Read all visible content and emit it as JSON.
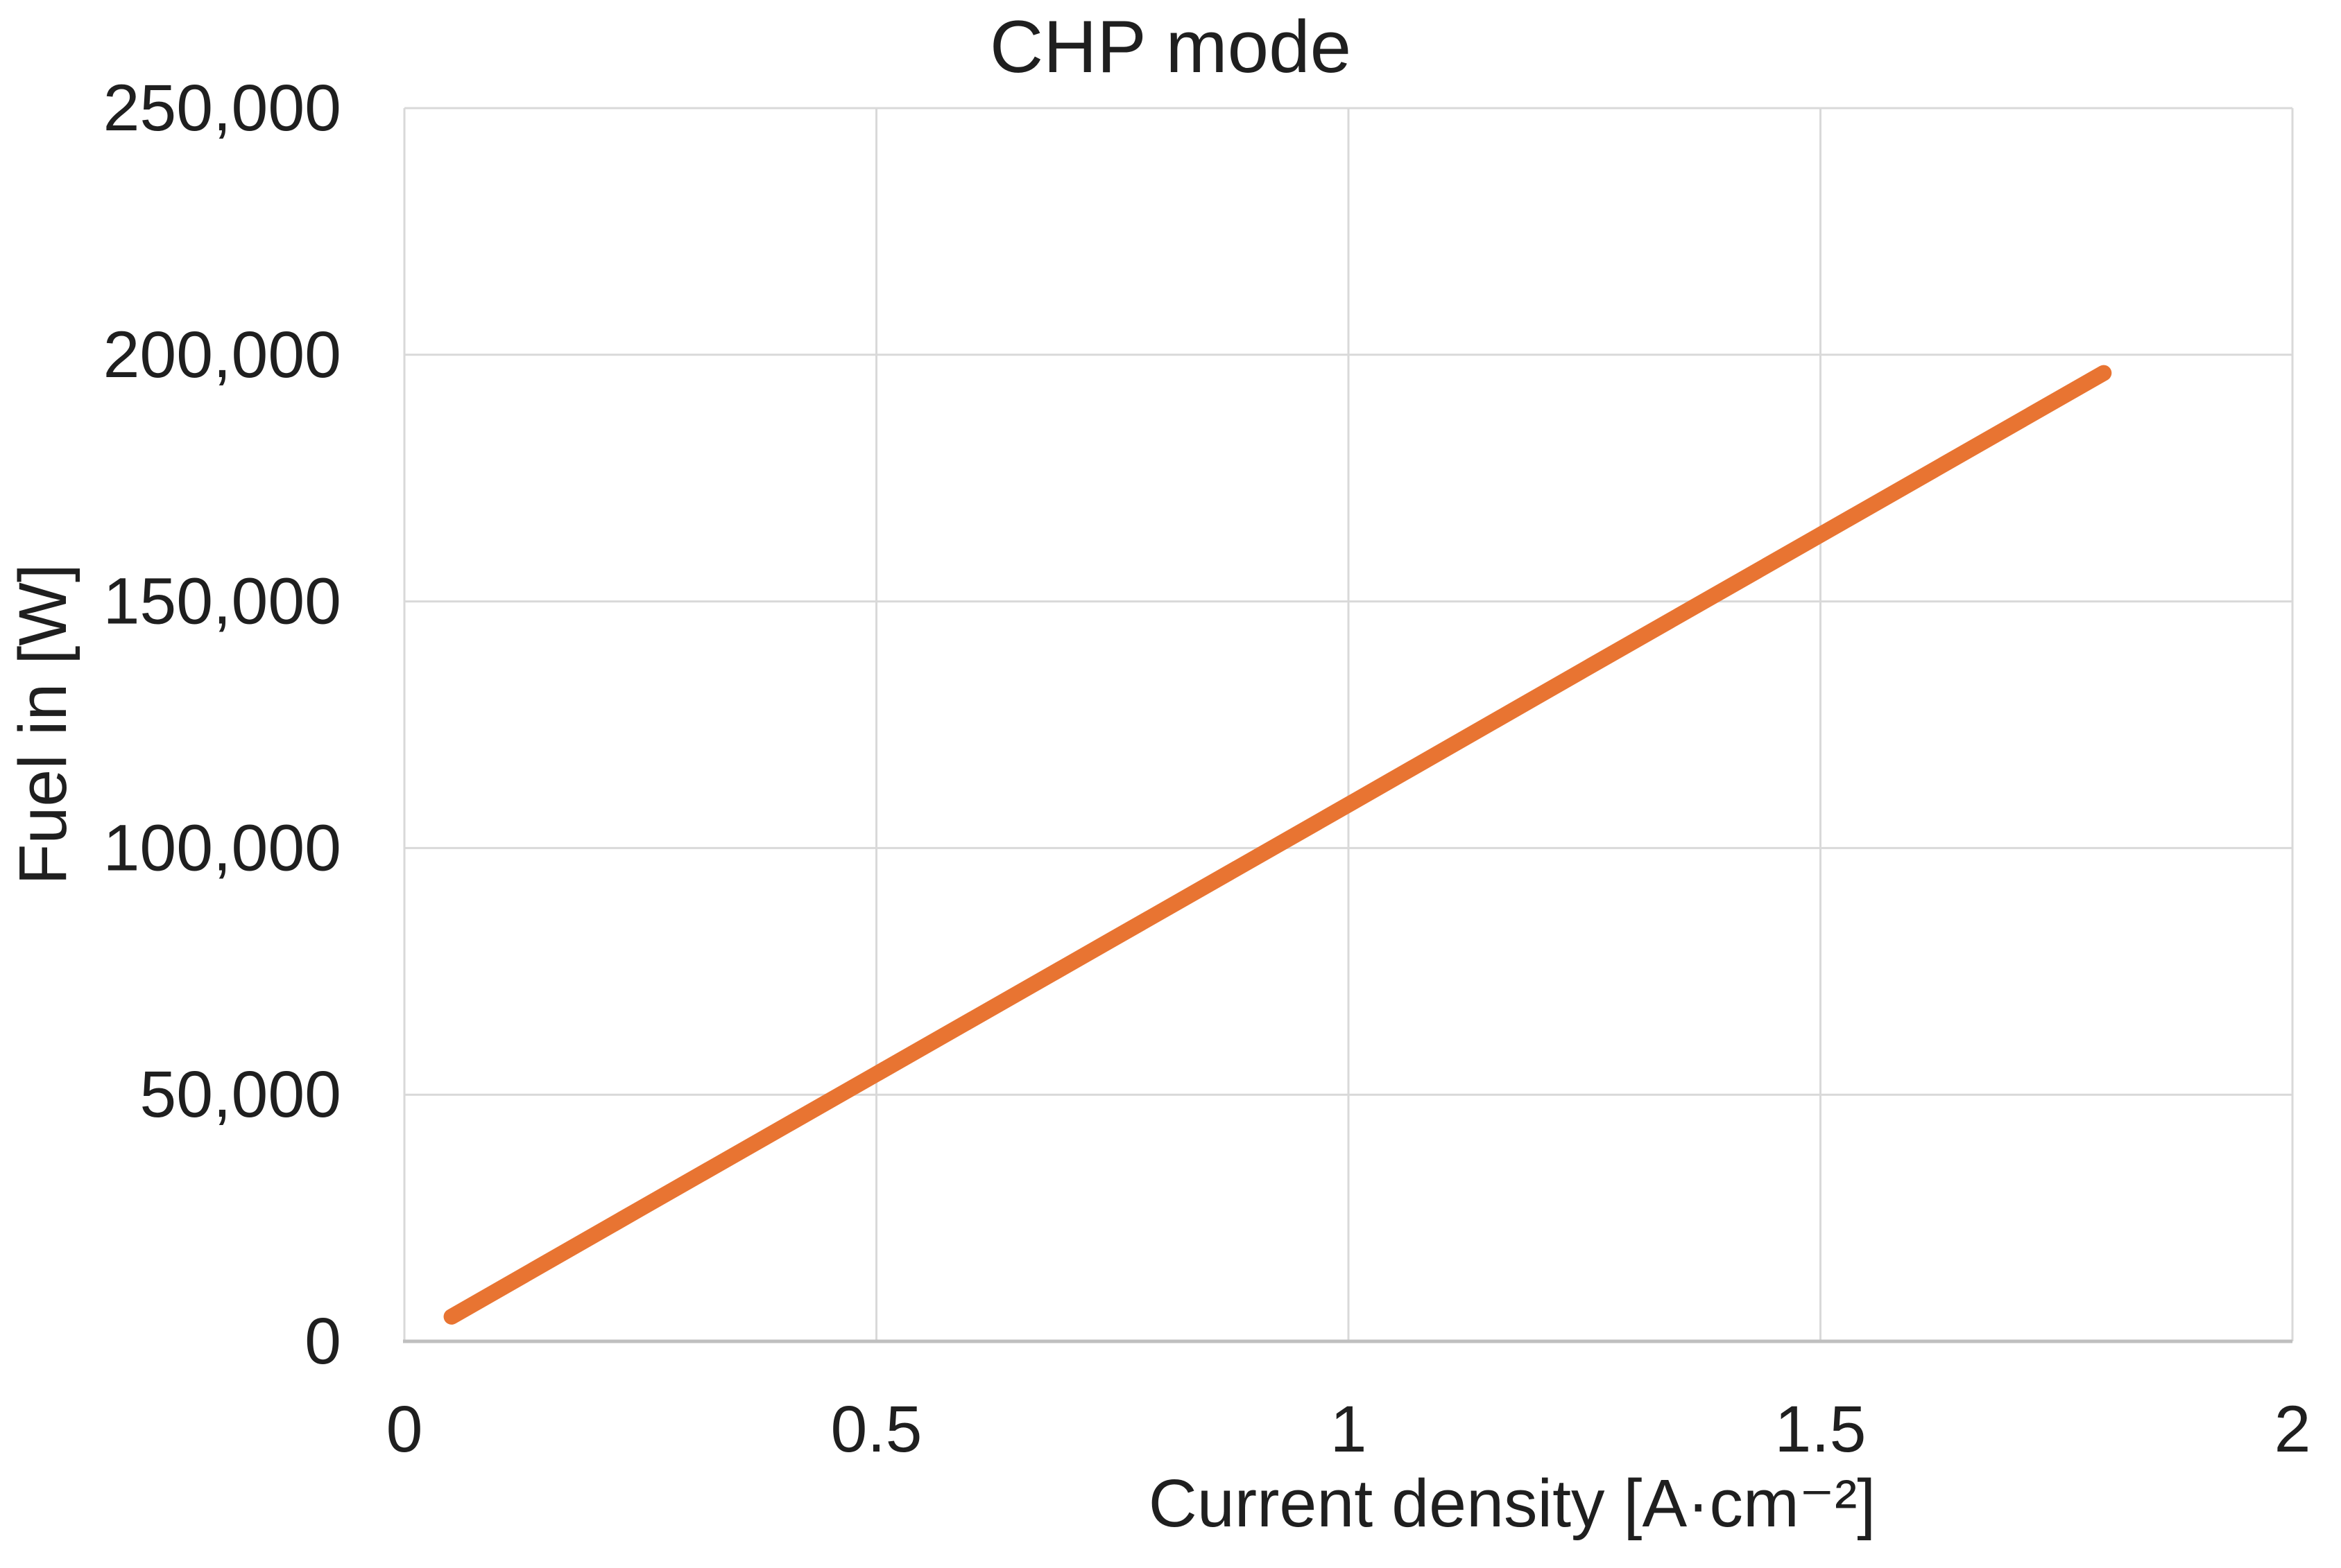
{
  "figure": {
    "background_color": "#ffffff",
    "text_color": "#1f1f1f",
    "gridline_color": "#d9d9d9",
    "axis_line_color": "#bfbfbf"
  },
  "chart_data": {
    "type": "line",
    "title": "CHP mode",
    "xlabel": "Current density [A·cm⁻²]",
    "ylabel": "Fuel in [W]",
    "xlim": [
      0,
      2
    ],
    "ylim": [
      0,
      250000
    ],
    "grid": true,
    "legend": false,
    "x_ticks": {
      "values": [
        0,
        0.5,
        1,
        1.5,
        2
      ],
      "labels": [
        "0",
        "0.5",
        "1",
        "1.5",
        "2"
      ]
    },
    "y_ticks": {
      "values": [
        0,
        50000,
        100000,
        150000,
        200000,
        250000
      ],
      "labels": [
        "0",
        "50,000",
        "100,000",
        "150,000",
        "200,000",
        "250,000"
      ]
    },
    "series": [
      {
        "name": "Fuel in",
        "color": "#e87432",
        "line_width": 23,
        "x": [
          0.05,
          0.25,
          0.5,
          0.75,
          1.0,
          1.25,
          1.5,
          1.8
        ],
        "y": [
          5000,
          26900,
          54200,
          81500,
          108800,
          136200,
          163500,
          196300
        ]
      }
    ]
  }
}
